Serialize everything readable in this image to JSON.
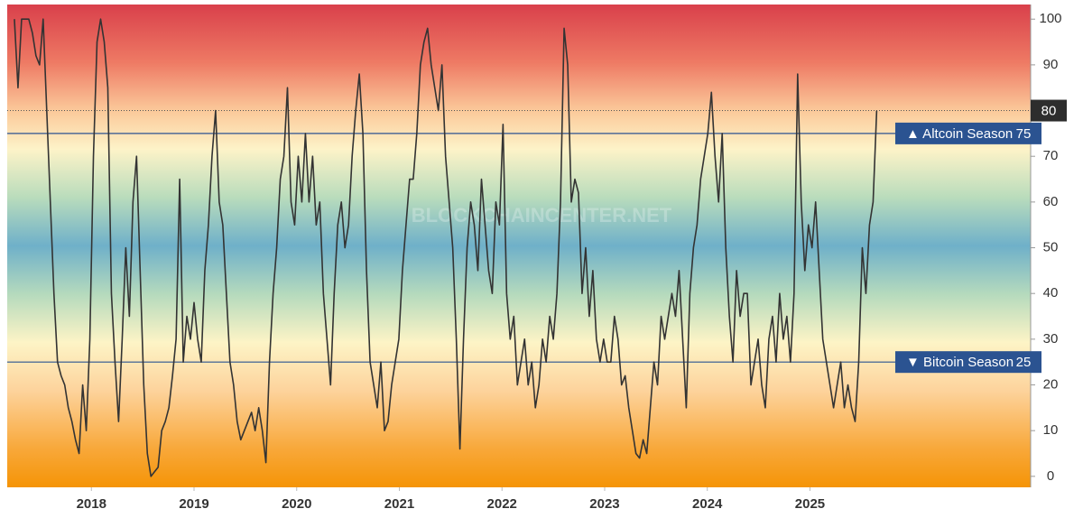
{
  "chart_data": {
    "type": "line",
    "watermark": "BLOCKCHAINCENTER.NET",
    "color": "#333333",
    "x": [
      2017.25,
      2017.285,
      2017.32,
      2017.355,
      2017.39,
      2017.425,
      2017.46,
      2017.495,
      2017.53,
      2017.565,
      2017.6,
      2017.635,
      2017.67,
      2017.705,
      2017.74,
      2017.775,
      2017.81,
      2017.845,
      2017.88,
      2017.915,
      2017.95,
      2017.985,
      2018.02,
      2018.055,
      2018.09,
      2018.125,
      2018.16,
      2018.195,
      2018.23,
      2018.265,
      2018.3,
      2018.335,
      2018.37,
      2018.405,
      2018.44,
      2018.475,
      2018.51,
      2018.545,
      2018.58,
      2018.615,
      2018.65,
      2018.685,
      2018.72,
      2018.755,
      2018.79,
      2018.825,
      2018.86,
      2018.895,
      2018.93,
      2018.965,
      2019,
      2019.035,
      2019.07,
      2019.105,
      2019.14,
      2019.175,
      2019.21,
      2019.245,
      2019.28,
      2019.315,
      2019.35,
      2019.385,
      2019.42,
      2019.455,
      2019.49,
      2019.525,
      2019.56,
      2019.595,
      2019.63,
      2019.665,
      2019.7,
      2019.735,
      2019.77,
      2019.805,
      2019.84,
      2019.875,
      2019.91,
      2019.945,
      2019.98,
      2020.015,
      2020.05,
      2020.085,
      2020.12,
      2020.155,
      2020.19,
      2020.225,
      2020.26,
      2020.295,
      2020.33,
      2020.365,
      2020.4,
      2020.435,
      2020.47,
      2020.505,
      2020.54,
      2020.575,
      2020.61,
      2020.645,
      2020.68,
      2020.715,
      2020.75,
      2020.785,
      2020.82,
      2020.855,
      2020.89,
      2020.925,
      2020.96,
      2020.995,
      2021.03,
      2021.065,
      2021.1,
      2021.135,
      2021.17,
      2021.205,
      2021.24,
      2021.275,
      2021.31,
      2021.345,
      2021.38,
      2021.415,
      2021.45,
      2021.485,
      2021.52,
      2021.555,
      2021.59,
      2021.625,
      2021.66,
      2021.695,
      2021.73,
      2021.765,
      2021.8,
      2021.835,
      2021.87,
      2021.905,
      2021.94,
      2021.975,
      2022.01,
      2022.045,
      2022.08,
      2022.115,
      2022.15,
      2022.185,
      2022.22,
      2022.255,
      2022.29,
      2022.325,
      2022.36,
      2022.395,
      2022.43,
      2022.465,
      2022.5,
      2022.535,
      2022.57,
      2022.605,
      2022.64,
      2022.675,
      2022.71,
      2022.745,
      2022.78,
      2022.815,
      2022.85,
      2022.885,
      2022.92,
      2022.955,
      2022.99,
      2023.025,
      2023.06,
      2023.095,
      2023.13,
      2023.165,
      2023.2,
      2023.235,
      2023.27,
      2023.305,
      2023.34,
      2023.375,
      2023.41,
      2023.445,
      2023.48,
      2023.515,
      2023.55,
      2023.585,
      2023.62,
      2023.655,
      2023.69,
      2023.725,
      2023.76,
      2023.795,
      2023.83,
      2023.865,
      2023.9,
      2023.935,
      2023.97,
      2024.005,
      2024.04,
      2024.075,
      2024.11,
      2024.145,
      2024.18,
      2024.215,
      2024.25,
      2024.285,
      2024.32,
      2024.355,
      2024.39,
      2024.425,
      2024.46,
      2024.495,
      2024.53,
      2024.565,
      2024.6,
      2024.635,
      2024.67,
      2024.705,
      2024.74,
      2024.775,
      2024.81,
      2024.845,
      2024.88,
      2024.915,
      2024.95,
      2024.985,
      2025.02,
      2025.055,
      2025.09,
      2025.125,
      2025.16,
      2025.195,
      2025.23,
      2025.265,
      2025.3,
      2025.335,
      2025.37,
      2025.405,
      2025.44,
      2025.475,
      2025.51,
      2025.545,
      2025.58,
      2025.615,
      2025.65
    ],
    "values": [
      100,
      85,
      100,
      100,
      100,
      97,
      92,
      90,
      100,
      80,
      60,
      40,
      25,
      22,
      20,
      15,
      12,
      8,
      5,
      20,
      10,
      30,
      70,
      95,
      100,
      95,
      85,
      40,
      25,
      12,
      30,
      50,
      35,
      60,
      70,
      45,
      20,
      5,
      0,
      1,
      2,
      10,
      12,
      15,
      22,
      30,
      65,
      25,
      35,
      30,
      38,
      30,
      25,
      45,
      55,
      70,
      80,
      60,
      55,
      40,
      25,
      20,
      12,
      8,
      10,
      12,
      14,
      10,
      15,
      10,
      3,
      25,
      40,
      50,
      65,
      70,
      85,
      60,
      55,
      70,
      60,
      75,
      60,
      70,
      55,
      60,
      40,
      30,
      20,
      40,
      55,
      60,
      50,
      55,
      70,
      80,
      88,
      75,
      45,
      25,
      20,
      15,
      25,
      10,
      12,
      20,
      25,
      30,
      45,
      55,
      65,
      65,
      75,
      90,
      95,
      98,
      90,
      85,
      80,
      90,
      70,
      60,
      50,
      30,
      6,
      30,
      50,
      60,
      55,
      45,
      65,
      55,
      45,
      40,
      60,
      55,
      77,
      40,
      30,
      35,
      20,
      25,
      30,
      20,
      25,
      15,
      20,
      30,
      25,
      35,
      30,
      40,
      60,
      98,
      90,
      60,
      65,
      62,
      40,
      50,
      35,
      45,
      30,
      25,
      30,
      25,
      25,
      35,
      30,
      20,
      22,
      15,
      10,
      5,
      4,
      8,
      5,
      15,
      25,
      20,
      35,
      30,
      35,
      40,
      35,
      45,
      30,
      15,
      40,
      50,
      55,
      65,
      70,
      75,
      84,
      70,
      60,
      75,
      50,
      35,
      25,
      45,
      35,
      40,
      40,
      20,
      25,
      30,
      20,
      15,
      30,
      35,
      25,
      40,
      30,
      35,
      25,
      40,
      88,
      60,
      45,
      55,
      50,
      60,
      45,
      30,
      25,
      20,
      15,
      20,
      25,
      15,
      20,
      15,
      12,
      25,
      50,
      40,
      55,
      60,
      80
    ],
    "xlim": [
      2017.18,
      2027.15
    ],
    "ylim": [
      -2.4,
      103.2
    ],
    "xticks": [
      2018,
      2019,
      2020,
      2021,
      2022,
      2023,
      2024,
      2025
    ],
    "yticks": [
      0,
      10,
      20,
      30,
      40,
      50,
      60,
      70,
      80,
      90,
      100
    ],
    "reference_lines": [
      {
        "value": 75,
        "label": "▲ Altcoin Season",
        "color": "#2b5391"
      },
      {
        "value": 25,
        "label": "▼ Bitcoin Season",
        "color": "#2b5391"
      }
    ]
  }
}
